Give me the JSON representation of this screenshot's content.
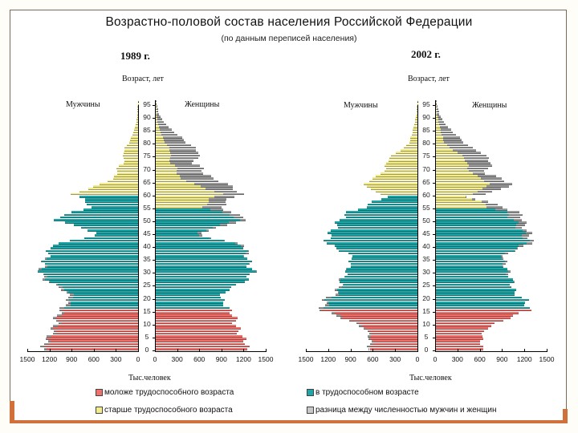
{
  "title": "Возрастно-половой состав населения Российской Федерации",
  "subtitle": "(по данным переписей населения)",
  "colors": {
    "under_working": "#f0716b",
    "working": "#1fa6a8",
    "over_working": "#f3ec8a",
    "difference": "#9a9a9a",
    "frame_accent": "#d0703a"
  },
  "legend": [
    {
      "key": "under_working",
      "label": "моложе трудоспособного возраста"
    },
    {
      "key": "working",
      "label": "в трудоспособном возрасте"
    },
    {
      "key": "over_working",
      "label": "старше трудоспособного возраста"
    },
    {
      "key": "difference",
      "label": "разница между численностью мужчин и женщин"
    }
  ],
  "charts": [
    {
      "year_label": "1989 г.",
      "age_axis_label": "Возраст, лет",
      "male_label": "Мужчины",
      "female_label": "Женщины",
      "x_axis_label": "Тыс.человек"
    },
    {
      "year_label": "2002 г.",
      "age_axis_label": "Возраст, лет",
      "male_label": "Мужчины",
      "female_label": "Женщины",
      "x_axis_label": "Тыс.человек"
    }
  ],
  "chart_data": [
    {
      "type": "bar",
      "subtype": "population-pyramid",
      "title": "1989 г.",
      "xlabel": "Тыс.человек",
      "ylabel": "Возраст, лет",
      "x_ticks": [
        1500,
        1200,
        900,
        600,
        300,
        0,
        0,
        300,
        600,
        900,
        1200,
        1500
      ],
      "y_ticks": [
        0,
        5,
        10,
        15,
        20,
        25,
        30,
        35,
        40,
        45,
        50,
        55,
        60,
        65,
        70,
        75,
        80,
        85,
        90,
        95
      ],
      "xlim": [
        0,
        1500
      ],
      "ylim": [
        0,
        100
      ],
      "working_age": {
        "male": [
          16,
          59
        ],
        "female": [
          16,
          54
        ]
      },
      "anchor_ages": [
        0,
        2,
        5,
        8,
        10,
        13,
        15,
        17,
        20,
        23,
        25,
        27,
        29,
        30,
        32,
        35,
        38,
        40,
        42,
        44,
        45,
        47,
        49,
        50,
        51,
        53,
        55,
        57,
        59,
        60,
        62,
        64,
        66,
        68,
        70,
        72,
        74,
        76,
        78,
        80,
        83,
        86,
        90,
        95
      ],
      "series": [
        {
          "name": "Мужчины",
          "values": [
            1270,
            1290,
            1200,
            1150,
            1120,
            1100,
            1050,
            1000,
            930,
            1000,
            1150,
            1250,
            1330,
            1320,
            1300,
            1250,
            1200,
            1200,
            900,
            600,
            550,
            800,
            950,
            1150,
            1100,
            870,
            650,
            700,
            800,
            880,
            700,
            500,
            350,
            280,
            300,
            200,
            190,
            200,
            180,
            120,
            80,
            40,
            15,
            3
          ]
        },
        {
          "name": "Женщины",
          "values": [
            1220,
            1240,
            1160,
            1110,
            1080,
            1060,
            1000,
            950,
            880,
            960,
            1120,
            1230,
            1300,
            1310,
            1280,
            1250,
            1220,
            1220,
            920,
            630,
            600,
            850,
            1050,
            1250,
            1220,
            1000,
            900,
            950,
            1050,
            1150,
            1080,
            950,
            800,
            640,
            650,
            500,
            560,
            600,
            520,
            420,
            300,
            170,
            60,
            5
          ]
        }
      ]
    },
    {
      "type": "bar",
      "subtype": "population-pyramid",
      "title": "2002 г.",
      "xlabel": "Тыс.человек",
      "ylabel": "Возраст, лет",
      "x_ticks": [
        1500,
        1200,
        900,
        600,
        300,
        0,
        0,
        300,
        600,
        900,
        1200,
        1500
      ],
      "y_ticks": [
        0,
        5,
        10,
        15,
        20,
        25,
        30,
        35,
        40,
        45,
        50,
        55,
        60,
        65,
        70,
        75,
        80,
        85,
        90,
        95
      ],
      "xlim": [
        0,
        1500
      ],
      "ylim": [
        0,
        100
      ],
      "working_age": {
        "male": [
          16,
          59
        ],
        "female": [
          16,
          54
        ]
      },
      "anchor_ages": [
        0,
        2,
        5,
        8,
        10,
        12,
        14,
        15,
        17,
        19,
        20,
        22,
        25,
        28,
        30,
        32,
        35,
        37,
        39,
        40,
        42,
        44,
        46,
        48,
        50,
        51,
        53,
        55,
        57,
        59,
        60,
        62,
        64,
        66,
        68,
        70,
        72,
        74,
        76,
        78,
        80,
        83,
        86,
        90,
        95
      ],
      "series": [
        {
          "name": "Мужчины",
          "values": [
            660,
            640,
            650,
            700,
            850,
            1000,
            1200,
            1300,
            1270,
            1250,
            1200,
            1080,
            1050,
            1000,
            950,
            930,
            880,
            930,
            1100,
            1150,
            1230,
            1180,
            1150,
            1080,
            1050,
            1000,
            930,
            700,
            600,
            400,
            480,
            650,
            700,
            620,
            480,
            430,
            420,
            380,
            300,
            180,
            110,
            80,
            50,
            20,
            2
          ]
        },
        {
          "name": "Женщины",
          "values": [
            630,
            610,
            620,
            670,
            820,
            970,
            1150,
            1250,
            1230,
            1200,
            1150,
            1050,
            1030,
            1000,
            970,
            940,
            920,
            950,
            1120,
            1200,
            1300,
            1260,
            1230,
            1180,
            1180,
            1160,
            1100,
            900,
            700,
            400,
            650,
            900,
            1000,
            900,
            650,
            700,
            750,
            700,
            620,
            480,
            380,
            270,
            160,
            60,
            8
          ]
        }
      ]
    }
  ]
}
